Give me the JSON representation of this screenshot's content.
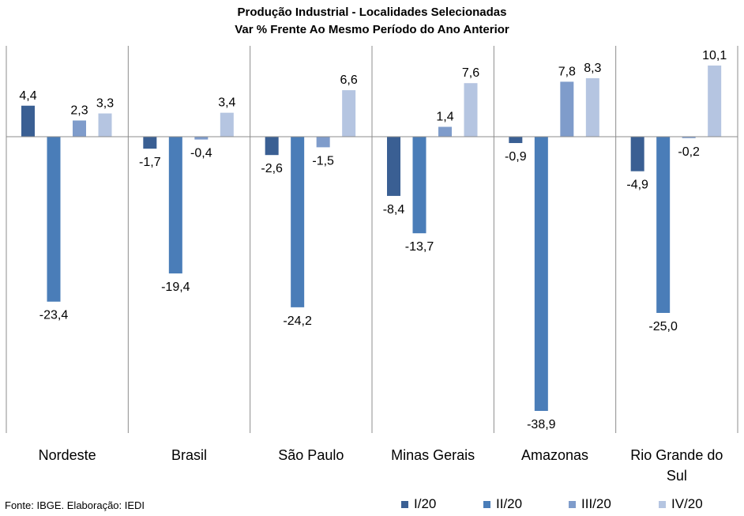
{
  "chart_data": {
    "type": "bar",
    "title": "Produção Industrial - Localidades Selecionadas",
    "subtitle": "Var % Frente Ao Mesmo Período do Ano Anterior",
    "categories": [
      [
        "Nordeste"
      ],
      [
        "Brasil"
      ],
      [
        "São Paulo"
      ],
      [
        "Minas Gerais"
      ],
      [
        "Amazonas"
      ],
      [
        "Rio Grande do",
        "Sul"
      ]
    ],
    "series": [
      {
        "name": "I/20",
        "color": "#3A5F93",
        "values": [
          4.4,
          -1.7,
          -2.6,
          -8.4,
          -0.9,
          -4.9
        ],
        "labels": [
          "4,4",
          "-1,7",
          "-2,6",
          "-8,4",
          "-0,9",
          "-4,9"
        ]
      },
      {
        "name": "II/20",
        "color": "#4A7DB8",
        "values": [
          -23.4,
          -19.4,
          -24.2,
          -13.7,
          -38.9,
          -25.0
        ],
        "labels": [
          "-23,4",
          "-19,4",
          "-24,2",
          "-13,7",
          "-38,9",
          "-25,0"
        ]
      },
      {
        "name": "III/20",
        "color": "#7F9CCB",
        "values": [
          2.3,
          -0.4,
          -1.5,
          1.4,
          7.8,
          -0.2
        ],
        "labels": [
          "2,3",
          "-0,4",
          "-1,5",
          "1,4",
          "7,8",
          "-0,2"
        ]
      },
      {
        "name": "IV/20",
        "color": "#B5C5E1",
        "values": [
          3.3,
          3.4,
          6.6,
          7.6,
          8.3,
          10.1
        ],
        "labels": [
          "3,3",
          "3,4",
          "6,6",
          "7,6",
          "8,3",
          "10,1"
        ]
      }
    ],
    "ylim": [
      -42,
      13
    ],
    "grid": false,
    "legend_position": "bottom-right"
  },
  "source_note": "Fonte: IBGE. Elaboração: IEDI"
}
